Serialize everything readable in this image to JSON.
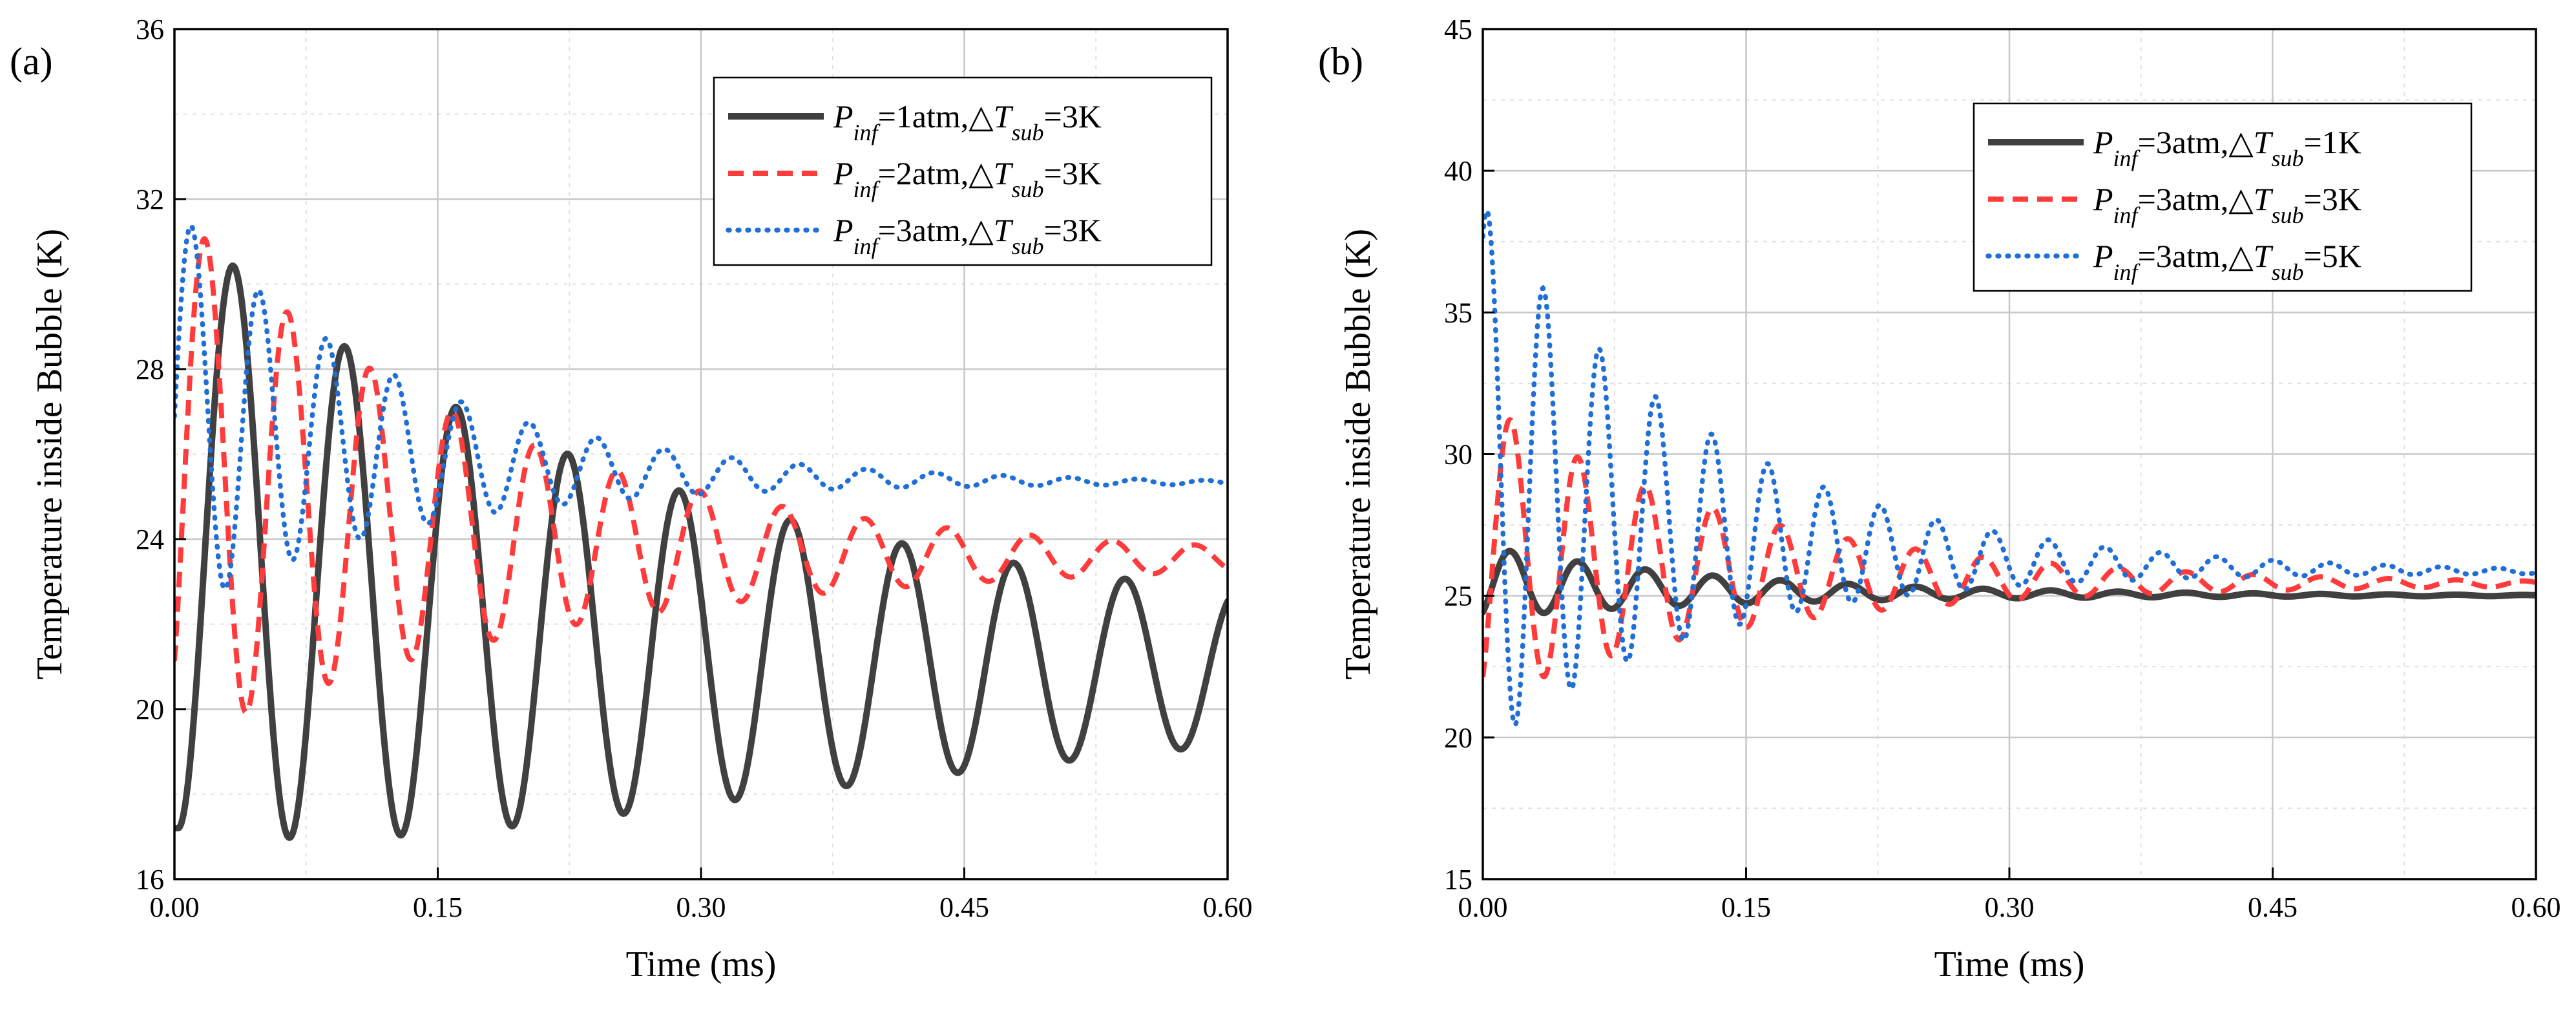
{
  "chart_data": [
    {
      "type": "line",
      "panel_label": "(a)",
      "xlabel": "Time (ms)",
      "ylabel": "Temperature inside Bubble (K)",
      "xlim": [
        0,
        0.6
      ],
      "ylim": [
        16,
        36
      ],
      "xticks": [
        0,
        0.15,
        0.3,
        0.45,
        0.6
      ],
      "xtick_labels": [
        "0.00",
        "0.15",
        "0.30",
        "0.45",
        "0.60"
      ],
      "yticks": [
        16,
        20,
        24,
        28,
        32,
        36
      ],
      "ytick_labels": [
        "16",
        "20",
        "24",
        "28",
        "32",
        "36"
      ],
      "grid": true,
      "legend_position": "top-right",
      "series": [
        {
          "legend_parts": [
            {
              "t": "P",
              "i": true
            },
            {
              "t": "inf",
              "i": true,
              "sub": true
            },
            {
              "t": "=1atm,△"
            },
            {
              "t": "T",
              "i": true
            },
            {
              "t": "sub",
              "i": true,
              "sub": true
            },
            {
              "t": "=3K"
            }
          ],
          "color": "#404040",
          "style": "solid",
          "model": {
            "t0": 0.002,
            "period": 0.0635,
            "amp0": 7.2,
            "amp_end": 1.8,
            "base0": 24.4,
            "base_end": 20.9,
            "y_end": 22.6
          }
        },
        {
          "legend_parts": [
            {
              "t": "P",
              "i": true
            },
            {
              "t": "inf",
              "i": true,
              "sub": true
            },
            {
              "t": "=2atm,△"
            },
            {
              "t": "T",
              "i": true
            },
            {
              "t": "sub",
              "i": true,
              "sub": true
            },
            {
              "t": "=3K"
            }
          ],
          "color": "#ff3b3b",
          "style": "dashed",
          "model": {
            "t0": -0.006,
            "period": 0.047,
            "amp0": 6.5,
            "amp_end": 0.3,
            "base0": 25.6,
            "base_end": 23.5,
            "y_end": 23.2
          }
        },
        {
          "legend_parts": [
            {
              "t": "P",
              "i": true
            },
            {
              "t": "inf",
              "i": true,
              "sub": true
            },
            {
              "t": "=3atm,△"
            },
            {
              "t": "T",
              "i": true
            },
            {
              "t": "sub",
              "i": true,
              "sub": true
            },
            {
              "t": "=3K"
            }
          ],
          "color": "#1f6fd6",
          "style": "dotted",
          "model": {
            "t0": -0.0095,
            "period": 0.0385,
            "amp0": 5.2,
            "amp_end": 0.05,
            "base0": 27.1,
            "base_end": 25.3,
            "y_end": 25.3
          }
        }
      ]
    },
    {
      "type": "line",
      "panel_label": "(b)",
      "xlabel": "Time (ms)",
      "ylabel": "Temperature inside Bubble (K)",
      "xlim": [
        0,
        0.6
      ],
      "ylim": [
        15,
        45
      ],
      "xticks": [
        0,
        0.15,
        0.3,
        0.45,
        0.6
      ],
      "xtick_labels": [
        "0.00",
        "0.15",
        "0.30",
        "0.45",
        "0.60"
      ],
      "yticks": [
        15,
        20,
        25,
        30,
        35,
        40,
        45
      ],
      "ytick_labels": [
        "15",
        "20",
        "25",
        "30",
        "35",
        "40",
        "45"
      ],
      "grid": true,
      "legend_position": "top-right",
      "series": [
        {
          "legend_parts": [
            {
              "t": "P",
              "i": true
            },
            {
              "t": "inf",
              "i": true,
              "sub": true
            },
            {
              "t": "=3atm,△"
            },
            {
              "t": "T",
              "i": true
            },
            {
              "t": "sub",
              "i": true,
              "sub": true
            },
            {
              "t": "=1K"
            }
          ],
          "color": "#404040",
          "style": "solid",
          "model": {
            "t0": -0.0035,
            "period": 0.0385,
            "amp0": 1.3,
            "amp_end": 0.02,
            "base0": 25.5,
            "base_end": 25.0,
            "y_end": 25.0
          }
        },
        {
          "legend_parts": [
            {
              "t": "P",
              "i": true
            },
            {
              "t": "inf",
              "i": true,
              "sub": true
            },
            {
              "t": "=3atm,△"
            },
            {
              "t": "T",
              "i": true
            },
            {
              "t": "sub",
              "i": true,
              "sub": true
            },
            {
              "t": "=3K"
            }
          ],
          "color": "#ff3b3b",
          "style": "dashed",
          "model": {
            "t0": -0.0035,
            "period": 0.0385,
            "amp0": 5.4,
            "amp_end": 0.1,
            "base0": 26.6,
            "base_end": 25.4,
            "y_end": 25.4
          }
        },
        {
          "legend_parts": [
            {
              "t": "P",
              "i": true
            },
            {
              "t": "inf",
              "i": true,
              "sub": true
            },
            {
              "t": "=3atm,△"
            },
            {
              "t": "T",
              "i": true
            },
            {
              "t": "sub",
              "i": true,
              "sub": true
            },
            {
              "t": "=5K"
            }
          ],
          "color": "#1f6fd6",
          "style": "dotted",
          "model": {
            "t0": -0.0135,
            "period": 0.032,
            "amp0": 10.7,
            "amp_end": 0.1,
            "base0": 29.5,
            "base_end": 25.8,
            "y_end": 25.8
          }
        }
      ]
    }
  ]
}
